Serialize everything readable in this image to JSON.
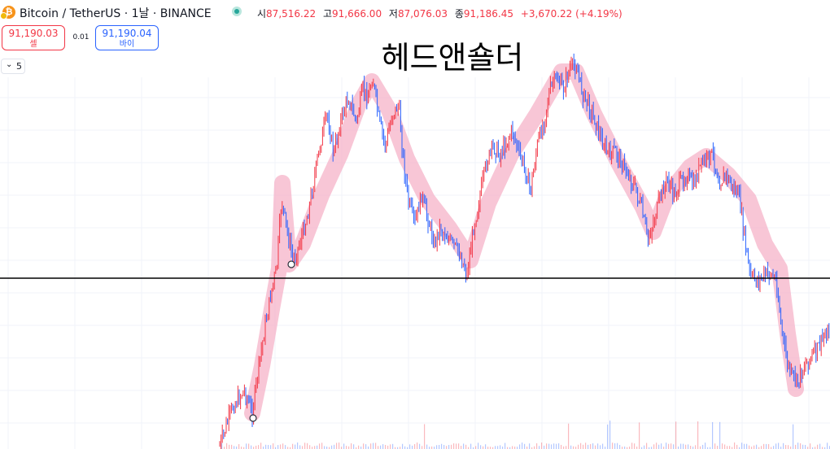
{
  "header": {
    "symbol_title": "Bitcoin / TetherUS · 1날 · BINANCE",
    "btc_logo": "₿",
    "ohlc": [
      {
        "key": "시",
        "value": "87,516.22"
      },
      {
        "key": "고",
        "value": "91,666.00"
      },
      {
        "key": "저",
        "value": "87,076.03"
      },
      {
        "key": "종",
        "value": "91,186.45"
      }
    ],
    "change": "+3,670.22 (+4.19%)"
  },
  "trade": {
    "sell_price": "91,190.03",
    "sell_label": "셀",
    "spread": "0.01",
    "buy_price": "91,190.04",
    "buy_label": "바이"
  },
  "indicators": {
    "count": "5",
    "toggle_icon": "chevron-down-icon"
  },
  "colors": {
    "up": "#f23645",
    "down": "#2962ff",
    "highlight": "#f5b3c8",
    "horizontal_line": "#000000",
    "grid": "#f0f3fa"
  },
  "chart_data": {
    "type": "line",
    "annotation": "헤드앤숄더",
    "series": [
      {
        "style": "candlestick",
        "points": [
          {
            "x": 270,
            "y": 548
          },
          {
            "x": 286,
            "y": 500
          },
          {
            "x": 300,
            "y": 480
          },
          {
            "x": 310,
            "y": 508
          },
          {
            "x": 318,
            "y": 450
          },
          {
            "x": 326,
            "y": 400
          },
          {
            "x": 334,
            "y": 355
          },
          {
            "x": 340,
            "y": 330
          },
          {
            "x": 346,
            "y": 245
          },
          {
            "x": 352,
            "y": 280
          },
          {
            "x": 360,
            "y": 320
          },
          {
            "x": 368,
            "y": 300
          },
          {
            "x": 378,
            "y": 265
          },
          {
            "x": 386,
            "y": 220
          },
          {
            "x": 394,
            "y": 175
          },
          {
            "x": 402,
            "y": 140
          },
          {
            "x": 410,
            "y": 190
          },
          {
            "x": 418,
            "y": 150
          },
          {
            "x": 428,
            "y": 120
          },
          {
            "x": 438,
            "y": 150
          },
          {
            "x": 446,
            "y": 110
          },
          {
            "x": 452,
            "y": 120
          },
          {
            "x": 458,
            "y": 95
          },
          {
            "x": 466,
            "y": 150
          },
          {
            "x": 474,
            "y": 180
          },
          {
            "x": 482,
            "y": 140
          },
          {
            "x": 490,
            "y": 130
          },
          {
            "x": 496,
            "y": 200
          },
          {
            "x": 502,
            "y": 250
          },
          {
            "x": 510,
            "y": 275
          },
          {
            "x": 518,
            "y": 240
          },
          {
            "x": 526,
            "y": 270
          },
          {
            "x": 534,
            "y": 300
          },
          {
            "x": 540,
            "y": 280
          },
          {
            "x": 548,
            "y": 290
          },
          {
            "x": 556,
            "y": 300
          },
          {
            "x": 564,
            "y": 310
          },
          {
            "x": 574,
            "y": 338
          },
          {
            "x": 582,
            "y": 280
          },
          {
            "x": 590,
            "y": 240
          },
          {
            "x": 598,
            "y": 200
          },
          {
            "x": 606,
            "y": 180
          },
          {
            "x": 614,
            "y": 190
          },
          {
            "x": 622,
            "y": 175
          },
          {
            "x": 630,
            "y": 160
          },
          {
            "x": 638,
            "y": 190
          },
          {
            "x": 646,
            "y": 210
          },
          {
            "x": 652,
            "y": 235
          },
          {
            "x": 660,
            "y": 180
          },
          {
            "x": 668,
            "y": 150
          },
          {
            "x": 676,
            "y": 110
          },
          {
            "x": 684,
            "y": 95
          },
          {
            "x": 692,
            "y": 110
          },
          {
            "x": 700,
            "y": 85
          },
          {
            "x": 708,
            "y": 80
          },
          {
            "x": 716,
            "y": 115
          },
          {
            "x": 724,
            "y": 130
          },
          {
            "x": 732,
            "y": 150
          },
          {
            "x": 740,
            "y": 175
          },
          {
            "x": 748,
            "y": 190
          },
          {
            "x": 756,
            "y": 185
          },
          {
            "x": 764,
            "y": 200
          },
          {
            "x": 772,
            "y": 215
          },
          {
            "x": 780,
            "y": 230
          },
          {
            "x": 788,
            "y": 255
          },
          {
            "x": 796,
            "y": 295
          },
          {
            "x": 804,
            "y": 270
          },
          {
            "x": 812,
            "y": 240
          },
          {
            "x": 820,
            "y": 220
          },
          {
            "x": 828,
            "y": 240
          },
          {
            "x": 836,
            "y": 225
          },
          {
            "x": 844,
            "y": 215
          },
          {
            "x": 852,
            "y": 230
          },
          {
            "x": 860,
            "y": 205
          },
          {
            "x": 868,
            "y": 195
          },
          {
            "x": 876,
            "y": 190
          },
          {
            "x": 884,
            "y": 225
          },
          {
            "x": 892,
            "y": 215
          },
          {
            "x": 900,
            "y": 230
          },
          {
            "x": 908,
            "y": 240
          },
          {
            "x": 916,
            "y": 300
          },
          {
            "x": 922,
            "y": 340
          },
          {
            "x": 930,
            "y": 345
          },
          {
            "x": 938,
            "y": 340
          },
          {
            "x": 946,
            "y": 335
          },
          {
            "x": 954,
            "y": 345
          },
          {
            "x": 960,
            "y": 400
          },
          {
            "x": 966,
            "y": 440
          },
          {
            "x": 972,
            "y": 460
          },
          {
            "x": 980,
            "y": 470
          },
          {
            "x": 988,
            "y": 450
          },
          {
            "x": 996,
            "y": 440
          },
          {
            "x": 1004,
            "y": 430
          },
          {
            "x": 1012,
            "y": 415
          },
          {
            "x": 1020,
            "y": 405
          }
        ]
      },
      {
        "style": "highlight-path",
        "points": [
          {
            "x": 310,
            "y": 508
          },
          {
            "x": 322,
            "y": 450
          },
          {
            "x": 334,
            "y": 380
          },
          {
            "x": 343,
            "y": 330
          },
          {
            "x": 347,
            "y": 225
          },
          {
            "x": 355,
            "y": 325
          },
          {
            "x": 372,
            "y": 300
          },
          {
            "x": 395,
            "y": 240
          },
          {
            "x": 418,
            "y": 190
          },
          {
            "x": 440,
            "y": 130
          },
          {
            "x": 457,
            "y": 100
          },
          {
            "x": 478,
            "y": 135
          },
          {
            "x": 500,
            "y": 195
          },
          {
            "x": 525,
            "y": 245
          },
          {
            "x": 552,
            "y": 280
          },
          {
            "x": 578,
            "y": 320
          },
          {
            "x": 600,
            "y": 250
          },
          {
            "x": 628,
            "y": 190
          },
          {
            "x": 660,
            "y": 140
          },
          {
            "x": 690,
            "y": 88
          },
          {
            "x": 708,
            "y": 88
          },
          {
            "x": 730,
            "y": 140
          },
          {
            "x": 760,
            "y": 200
          },
          {
            "x": 790,
            "y": 255
          },
          {
            "x": 803,
            "y": 285
          },
          {
            "x": 820,
            "y": 240
          },
          {
            "x": 848,
            "y": 205
          },
          {
            "x": 868,
            "y": 192
          },
          {
            "x": 895,
            "y": 215
          },
          {
            "x": 920,
            "y": 245
          },
          {
            "x": 940,
            "y": 300
          },
          {
            "x": 958,
            "y": 330
          },
          {
            "x": 968,
            "y": 410
          },
          {
            "x": 978,
            "y": 478
          }
        ]
      }
    ],
    "horizontal_line_price": "neckline",
    "markers": [
      {
        "x": 358,
        "y": 325
      },
      {
        "x": 311,
        "y": 514
      }
    ],
    "grid": true
  }
}
